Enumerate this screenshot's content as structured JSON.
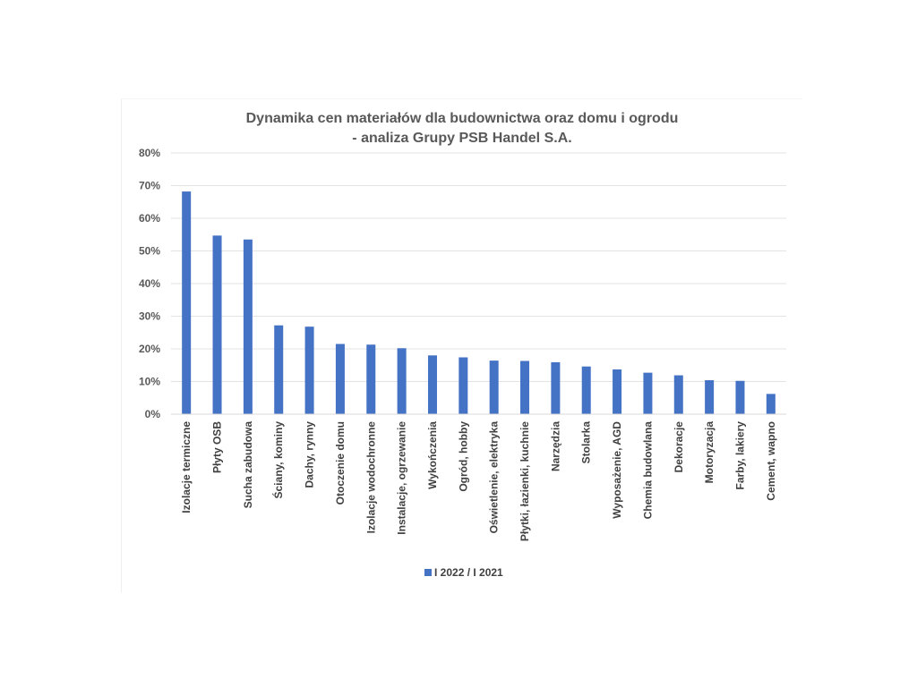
{
  "chart_data": {
    "type": "bar",
    "title": "Dynamika cen materiałów dla budownictwa oraz domu i ogrodu",
    "subtitle": "- analiza Grupy PSB Handel S.A.",
    "categories": [
      "Izolacje termiczne",
      "Płyty OSB",
      "Sucha zabudowa",
      "Ściany, kominy",
      "Dachy, rynny",
      "Otoczenie domu",
      "Izolacje wodochronne",
      "Instalacje, ogrzewanie",
      "Wykończenia",
      "Ogród, hobby",
      "Oświetlenie, elektryka",
      "Płytki, łazienki, kuchnie",
      "Narzędzia",
      "Stolarka",
      "Wyposażenie, AGD",
      "Chemia budowlana",
      "Dekoracje",
      "Motoryzacja",
      "Farby, lakiery",
      "Cement, wapno"
    ],
    "series": [
      {
        "name": "I 2022 / I 2021",
        "color": "#4472C4",
        "values": [
          68.2,
          54.7,
          53.5,
          27.2,
          26.8,
          21.5,
          21.3,
          20.2,
          18.0,
          17.4,
          16.4,
          16.3,
          15.9,
          14.6,
          13.7,
          12.7,
          11.9,
          10.4,
          10.2,
          6.2
        ]
      }
    ],
    "ylim": [
      0,
      80
    ],
    "yticks": [
      "0%",
      "10%",
      "20%",
      "30%",
      "40%",
      "50%",
      "60%",
      "70%",
      "80%"
    ],
    "grid": true,
    "legend_position": "bottom"
  }
}
